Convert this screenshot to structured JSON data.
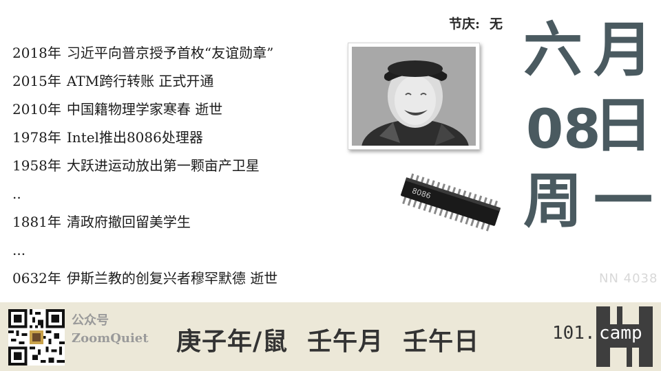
{
  "festival": {
    "label": "节庆",
    "colon": ":",
    "value": "无"
  },
  "events": [
    {
      "year": "2018年",
      "text": "习近平向普京授予首枚“友谊勋章”"
    },
    {
      "year": "2015年",
      "text": "ATM跨行转账 正式开通"
    },
    {
      "year": "2010年",
      "text": "中国籍物理学家寒春 逝世"
    },
    {
      "year": "1978年",
      "text": "Intel推出8086处理器"
    },
    {
      "year": "1958年",
      "text": "大跃进运动放出第一颗亩产卫星"
    },
    {
      "year": "",
      "text": ".."
    },
    {
      "year": "1881年",
      "text": "清政府撤回留美学生"
    },
    {
      "year": "",
      "text": "..."
    },
    {
      "year": "0632年",
      "text": "伊斯兰教的创复兴者穆罕默德 逝世"
    }
  ],
  "chip_label": "8086",
  "date": {
    "month_num": "六",
    "month_char": "月",
    "day_num": "08",
    "day_char": "日",
    "week_a": "周",
    "week_b": "一"
  },
  "watermark": "NN 4038",
  "footer": {
    "account_label": "公众号",
    "account_name": "ZoomQuiet",
    "ganzhi_year": "庚子年/鼠",
    "ganzhi_month": "壬午月",
    "ganzhi_day": "壬午日",
    "brand_num": "101.",
    "brand_word": "camp"
  },
  "colors": {
    "date_ink": "#4a5a60",
    "footer_bg": "#ece8d8",
    "logo_dark": "#3e3e3e"
  },
  "icons": {
    "portrait": "portrait-photo",
    "chip": "chip-icon",
    "qr": "qr-code"
  }
}
